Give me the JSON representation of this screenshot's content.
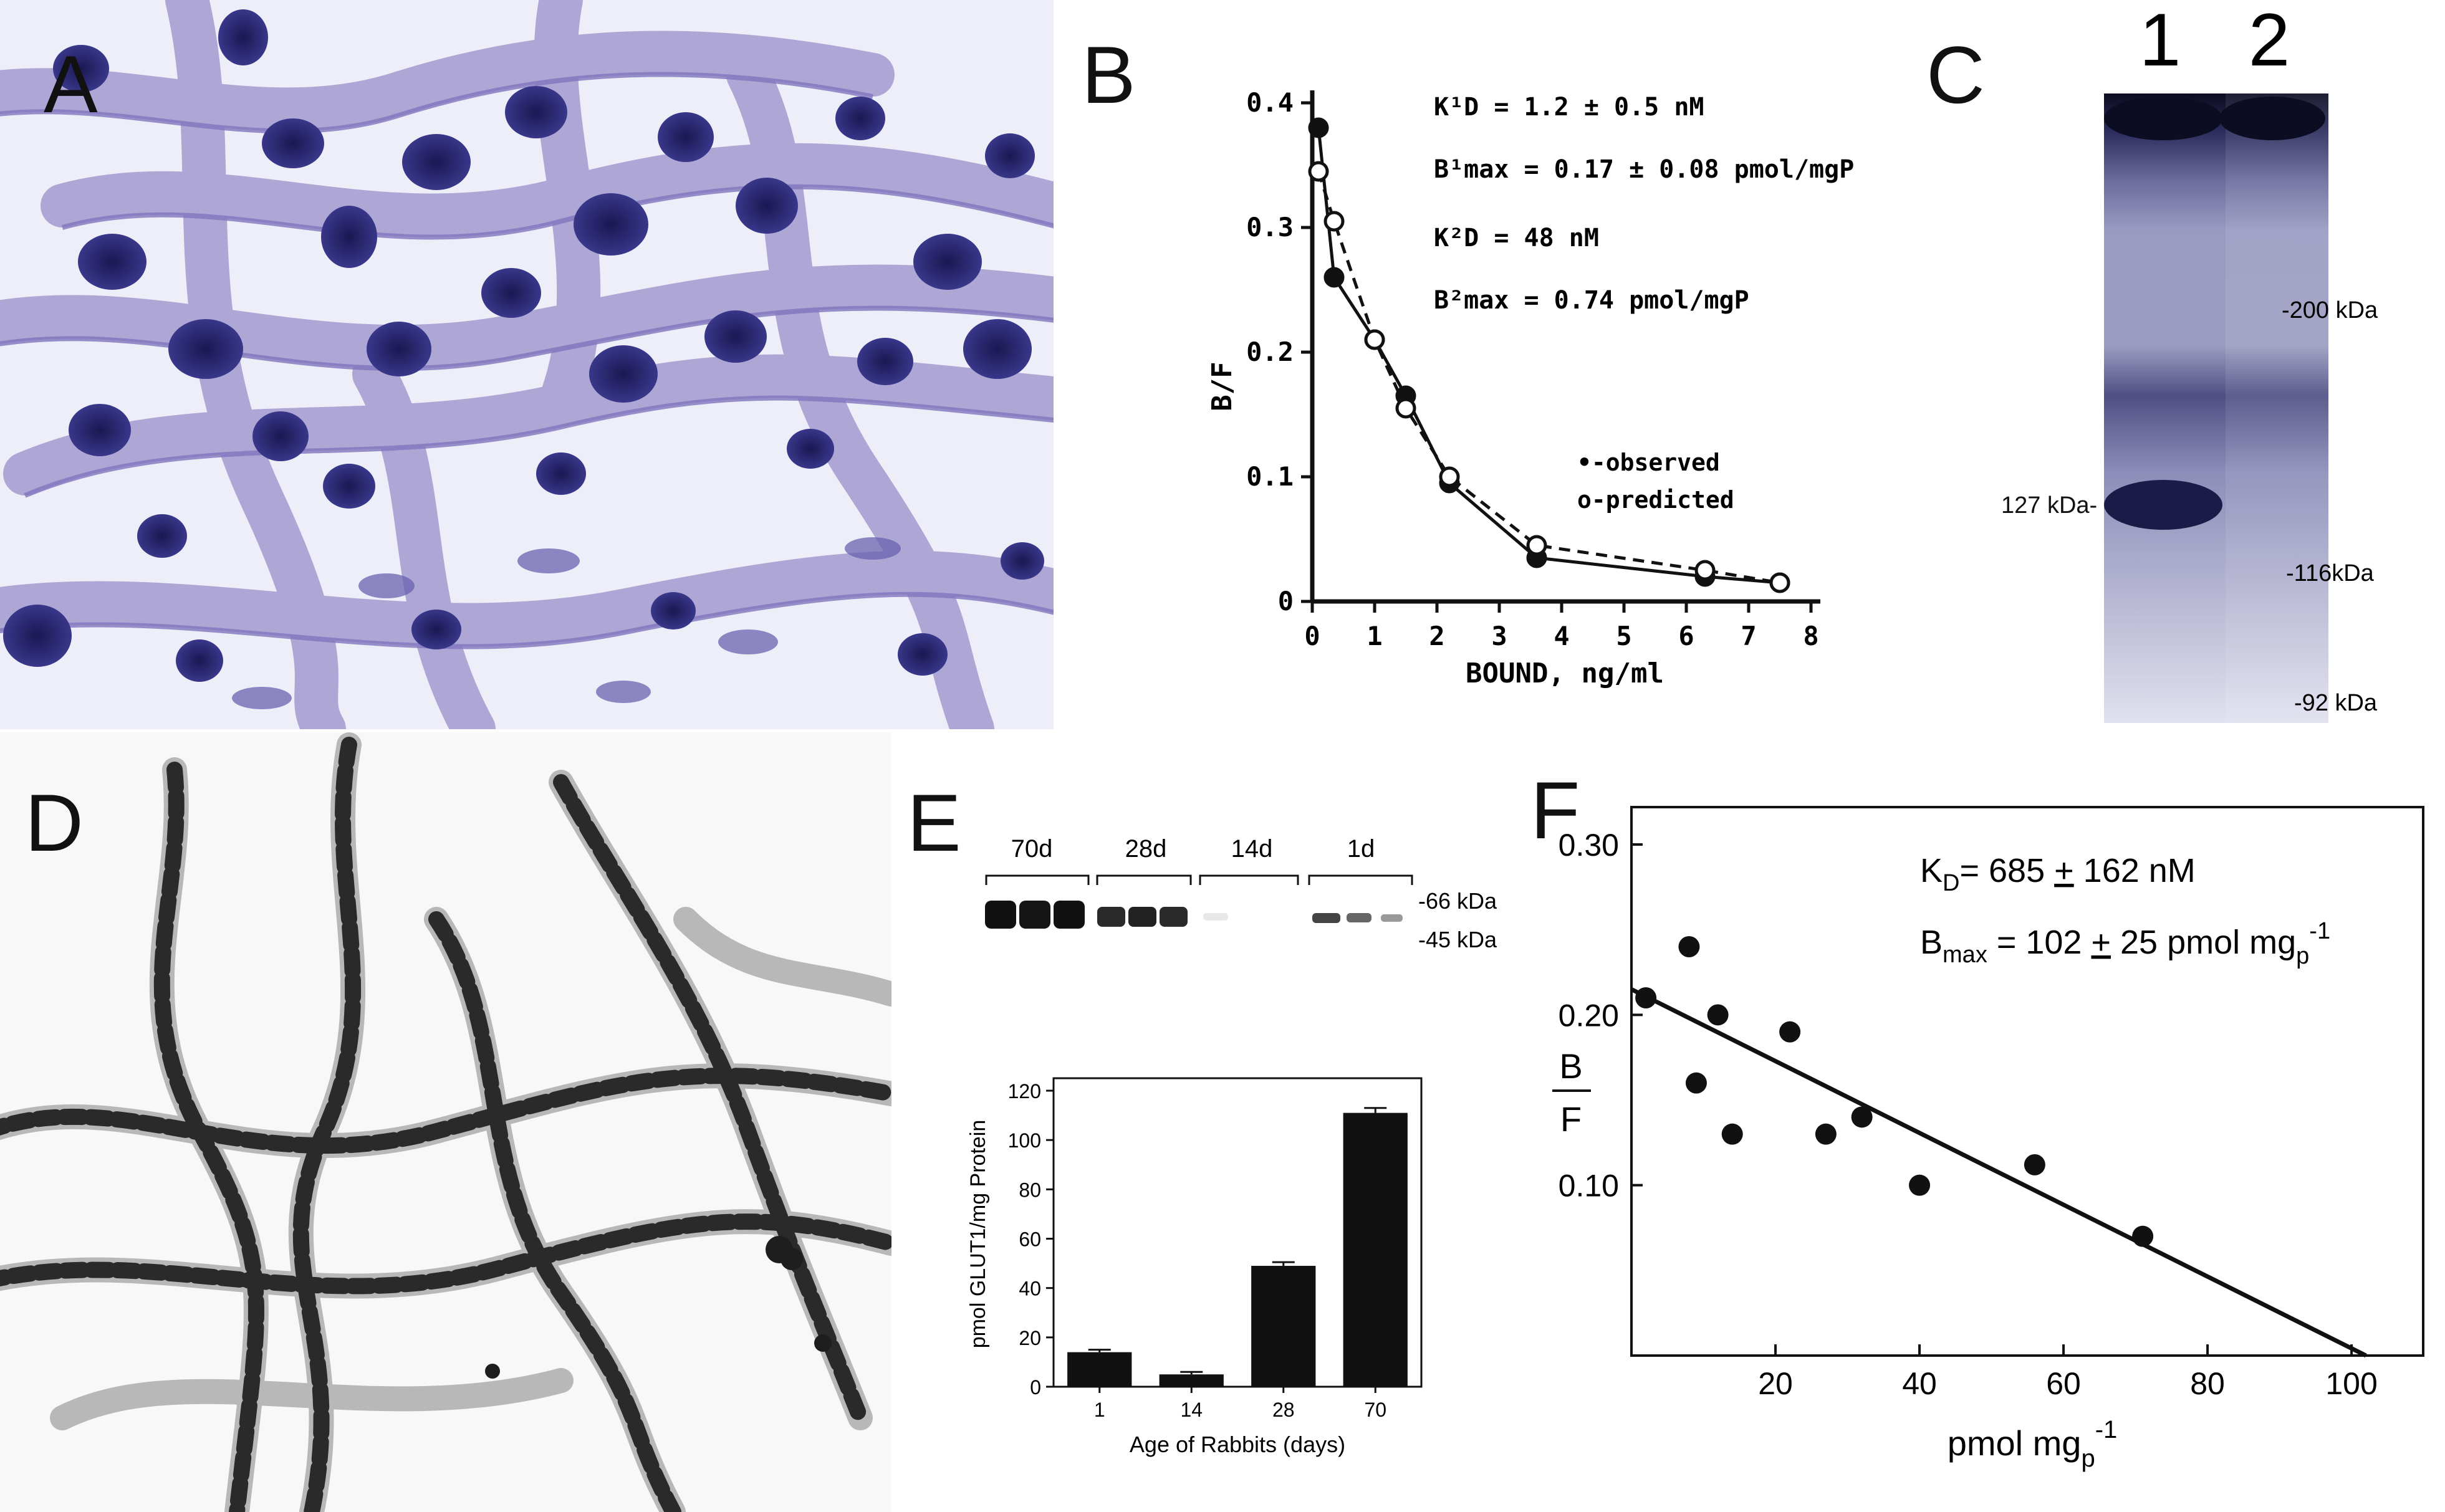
{
  "panels": {
    "A": {
      "label": "A"
    },
    "B": {
      "label": "B",
      "kd1": "K¹D = 1.2 ± 0.5 nM",
      "bmax1": "B¹max = 0.17 ± 0.08 pmol/mgP",
      "kd2": "K²D = 48 nM",
      "bmax2": "B²max = 0.74 pmol/mgP",
      "legend_observed": "•-observed",
      "legend_predicted": "o-predicted"
    },
    "C": {
      "label": "C",
      "lanes": [
        "1",
        "2"
      ],
      "markers": [
        "-200 kDa",
        "-116kDa",
        "-92 kDa"
      ],
      "band_label": "127 kDa-"
    },
    "D": {
      "label": "D"
    },
    "E": {
      "label": "E",
      "blot_groups": [
        "70d",
        "28d",
        "14d",
        "1d"
      ],
      "blot_markers": [
        "-66 kDa",
        "-45 kDa"
      ]
    },
    "F": {
      "label": "F",
      "kd": "KD= 685 ± 162 nM",
      "bmax": "Bmax = 102 ± 25 pmol mgp-1"
    }
  },
  "colors": {
    "stain_purple": "#3b3a8f",
    "stain_light": "#b9b3dc",
    "dark_gray": "#222222"
  },
  "chart_data": [
    {
      "id": "B",
      "type": "line",
      "title": "",
      "xlabel": "BOUND, ng/ml",
      "ylabel": "B/F",
      "xlim": [
        0,
        8
      ],
      "ylim": [
        0,
        0.4
      ],
      "xticks": [
        "0",
        "1",
        "2",
        "3",
        "4",
        "5",
        "6",
        "7",
        "8"
      ],
      "yticks": [
        "0",
        "0.1",
        "0.2",
        "0.3",
        "0.4"
      ],
      "series": [
        {
          "name": "observed",
          "marker": "filled",
          "line": "solid",
          "x": [
            0.1,
            0.35,
            1.0,
            1.5,
            2.2,
            3.6,
            6.3,
            7.5
          ],
          "y": [
            0.38,
            0.26,
            0.21,
            0.165,
            0.095,
            0.035,
            0.02,
            0.015
          ]
        },
        {
          "name": "predicted",
          "marker": "open",
          "line": "dashed",
          "x": [
            0.1,
            0.35,
            1.0,
            1.5,
            2.2,
            3.6,
            6.3,
            7.5
          ],
          "y": [
            0.345,
            0.305,
            0.21,
            0.155,
            0.1,
            0.045,
            0.025,
            0.015
          ]
        }
      ]
    },
    {
      "id": "E",
      "type": "bar",
      "xlabel": "Age of Rabbits (days)",
      "ylabel": "pmol GLUT1/mg Protein",
      "ylim": [
        0,
        120
      ],
      "yticks": [
        "0",
        "20",
        "40",
        "60",
        "80",
        "100",
        "120"
      ],
      "categories": [
        "1",
        "14",
        "28",
        "70"
      ],
      "values": [
        14,
        5,
        49,
        111
      ],
      "errors": [
        1,
        1,
        1.5,
        2
      ]
    },
    {
      "id": "F",
      "type": "scatter",
      "xlabel": "pmol mgp-1",
      "ylabel": "B/F",
      "xlim": [
        0,
        105
      ],
      "ylim": [
        0,
        0.3
      ],
      "xticks": [
        "20",
        "40",
        "60",
        "80",
        "100"
      ],
      "yticks": [
        "0.10",
        "0.20",
        "0.30"
      ],
      "points": {
        "x": [
          2,
          8,
          9,
          12,
          14,
          22,
          27,
          32,
          40,
          56,
          71
        ],
        "y": [
          0.21,
          0.24,
          0.16,
          0.2,
          0.13,
          0.19,
          0.13,
          0.14,
          0.1,
          0.112,
          0.07
        ]
      },
      "fit": {
        "x": [
          0,
          102
        ],
        "y": [
          0.215,
          0.0
        ]
      }
    }
  ]
}
